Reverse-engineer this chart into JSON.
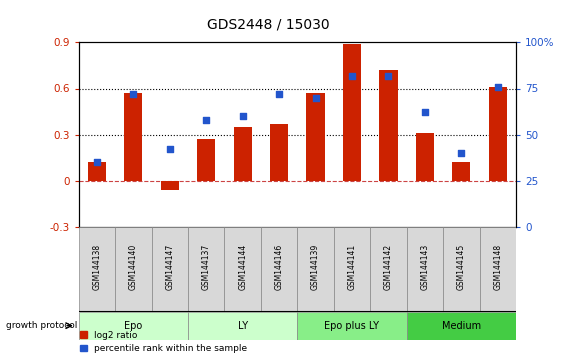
{
  "title": "GDS2448 / 15030",
  "samples": [
    "GSM144138",
    "GSM144140",
    "GSM144147",
    "GSM144137",
    "GSM144144",
    "GSM144146",
    "GSM144139",
    "GSM144141",
    "GSM144142",
    "GSM144143",
    "GSM144145",
    "GSM144148"
  ],
  "log2_ratio": [
    0.12,
    0.57,
    -0.06,
    0.27,
    0.35,
    0.37,
    0.57,
    0.89,
    0.72,
    0.31,
    0.12,
    0.61
  ],
  "percentile_rank": [
    35,
    72,
    42,
    58,
    60,
    72,
    70,
    82,
    82,
    62,
    40,
    76
  ],
  "bar_color": "#cc2200",
  "dot_color": "#2255cc",
  "groups": [
    {
      "label": "Epo",
      "start": 0,
      "end": 3,
      "color": "#ccffcc"
    },
    {
      "label": "LY",
      "start": 3,
      "end": 6,
      "color": "#ccffcc"
    },
    {
      "label": "Epo plus LY",
      "start": 6,
      "end": 9,
      "color": "#88ee88"
    },
    {
      "label": "Medium",
      "start": 9,
      "end": 12,
      "color": "#44cc44"
    }
  ],
  "ylim_left": [
    -0.3,
    0.9
  ],
  "ylim_right": [
    0,
    100
  ],
  "yticks_left": [
    -0.3,
    0.0,
    0.3,
    0.6,
    0.9
  ],
  "ytick_labels_left": [
    "-0.3",
    "0",
    "0.3",
    "0.6",
    "0.9"
  ],
  "yticks_right": [
    0,
    25,
    50,
    75,
    100
  ],
  "ytick_labels_right": [
    "0",
    "25",
    "50",
    "75",
    "100%"
  ],
  "hlines": [
    0.3,
    0.6
  ],
  "hline_zero_color": "#cc4444",
  "growth_protocol_label": "growth protocol",
  "legend_items": [
    {
      "label": "log2 ratio",
      "color": "#cc2200"
    },
    {
      "label": "percentile rank within the sample",
      "color": "#2255cc"
    }
  ],
  "background_color": "#ffffff"
}
